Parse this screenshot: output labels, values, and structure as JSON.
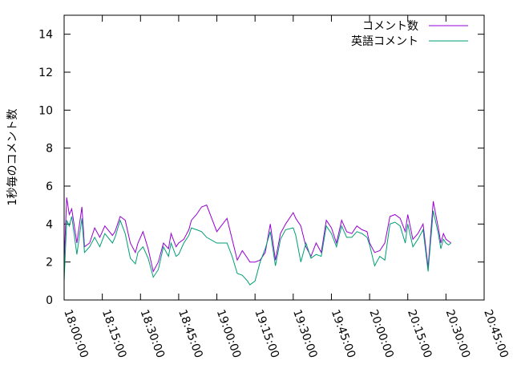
{
  "chart_data": {
    "type": "line",
    "ylabel": "1秒毎のコメント数",
    "xlabel": "",
    "title": "",
    "ylim": [
      0,
      15
    ],
    "yticks": [
      0,
      2,
      4,
      6,
      8,
      10,
      12,
      14
    ],
    "xlim": [
      "18:00:00",
      "20:45:00"
    ],
    "xticks": [
      "18:00:00",
      "18:15:00",
      "18:30:00",
      "18:45:00",
      "19:00:00",
      "19:15:00",
      "19:30:00",
      "19:45:00",
      "20:00:00",
      "20:15:00",
      "20:30:00",
      "20:45:00"
    ],
    "legend_position": "top-right",
    "grid": false,
    "series": [
      {
        "name": "コメント数",
        "color": "#9400d3",
        "x": [
          "18:00:00",
          "18:01:00",
          "18:02:00",
          "18:03:00",
          "18:05:00",
          "18:07:00",
          "18:08:00",
          "18:10:00",
          "18:12:00",
          "18:14:00",
          "18:16:00",
          "18:19:00",
          "18:20:00",
          "18:22:00",
          "18:24:00",
          "18:26:00",
          "18:28:00",
          "18:29:00",
          "18:31:00",
          "18:33:00",
          "18:35:00",
          "18:37:00",
          "18:39:00",
          "18:41:00",
          "18:42:00",
          "18:44:00",
          "18:45:00",
          "18:47:00",
          "18:49:00",
          "18:50:00",
          "18:52:00",
          "18:54:00",
          "18:56:00",
          "19:00:00",
          "19:04:00",
          "19:06:00",
          "19:08:00",
          "19:10:00",
          "19:12:00",
          "19:13:00",
          "19:15:00",
          "19:17:00",
          "19:19:00",
          "19:21:00",
          "19:23:00",
          "19:25:00",
          "19:27:00",
          "19:30:00",
          "19:31:00",
          "19:33:00",
          "19:35:00",
          "19:37:00",
          "19:39:00",
          "19:41:00",
          "19:43:00",
          "19:45:00",
          "19:47:00",
          "19:49:00",
          "19:51:00",
          "19:53:00",
          "19:55:00",
          "19:57:00",
          "19:59:00",
          "20:00:00",
          "20:02:00",
          "20:04:00",
          "20:06:00",
          "20:08:00",
          "20:10:00",
          "20:12:00",
          "20:14:00",
          "20:15:00",
          "20:17:00",
          "20:19:00",
          "20:21:00",
          "20:23:00",
          "20:25:00",
          "20:27:00",
          "20:28:00",
          "20:29:00",
          "20:30:00",
          "20:31:00",
          "20:32:00"
        ],
        "values": [
          2.0,
          5.4,
          4.5,
          4.8,
          3.0,
          4.9,
          2.8,
          3.0,
          3.8,
          3.3,
          3.9,
          3.4,
          3.6,
          4.4,
          4.2,
          3.0,
          2.5,
          3.0,
          3.6,
          2.7,
          1.5,
          2.0,
          3.0,
          2.7,
          3.5,
          2.8,
          3.0,
          3.2,
          3.7,
          4.2,
          4.5,
          4.9,
          5.0,
          3.6,
          4.3,
          3.2,
          2.1,
          2.6,
          2.2,
          2.0,
          2.0,
          2.1,
          2.5,
          4.0,
          2.1,
          3.5,
          4.0,
          4.6,
          4.3,
          3.9,
          2.8,
          2.3,
          3.0,
          2.5,
          4.2,
          3.8,
          3.0,
          4.2,
          3.6,
          3.5,
          3.9,
          3.7,
          3.6,
          3.0,
          2.5,
          2.6,
          3.0,
          4.4,
          4.5,
          4.3,
          3.6,
          4.5,
          3.2,
          3.5,
          4.0,
          1.7,
          5.2,
          3.8,
          3.0,
          3.5,
          3.2,
          3.1,
          3.0
        ]
      },
      {
        "name": "英語コメント",
        "color": "#009e73",
        "x": [
          "18:00:00",
          "18:01:00",
          "18:02:00",
          "18:03:00",
          "18:05:00",
          "18:07:00",
          "18:08:00",
          "18:10:00",
          "18:12:00",
          "18:14:00",
          "18:16:00",
          "18:19:00",
          "18:20:00",
          "18:22:00",
          "18:24:00",
          "18:26:00",
          "18:28:00",
          "18:29:00",
          "18:31:00",
          "18:33:00",
          "18:35:00",
          "18:37:00",
          "18:39:00",
          "18:41:00",
          "18:42:00",
          "18:44:00",
          "18:45:00",
          "18:47:00",
          "18:49:00",
          "18:50:00",
          "18:52:00",
          "18:54:00",
          "18:56:00",
          "19:00:00",
          "19:04:00",
          "19:06:00",
          "19:08:00",
          "19:10:00",
          "19:12:00",
          "19:13:00",
          "19:15:00",
          "19:17:00",
          "19:19:00",
          "19:21:00",
          "19:23:00",
          "19:25:00",
          "19:27:00",
          "19:30:00",
          "19:31:00",
          "19:33:00",
          "19:35:00",
          "19:37:00",
          "19:39:00",
          "19:41:00",
          "19:43:00",
          "19:45:00",
          "19:47:00",
          "19:49:00",
          "19:51:00",
          "19:53:00",
          "19:55:00",
          "19:57:00",
          "19:59:00",
          "20:00:00",
          "20:02:00",
          "20:04:00",
          "20:06:00",
          "20:08:00",
          "20:10:00",
          "20:12:00",
          "20:14:00",
          "20:15:00",
          "20:17:00",
          "20:19:00",
          "20:21:00",
          "20:23:00",
          "20:25:00",
          "20:27:00",
          "20:28:00",
          "20:29:00",
          "20:30:00",
          "20:31:00",
          "20:32:00"
        ],
        "values": [
          1.0,
          4.2,
          3.9,
          4.4,
          2.4,
          4.3,
          2.5,
          2.8,
          3.3,
          2.8,
          3.5,
          3.0,
          3.3,
          4.2,
          3.5,
          2.2,
          1.9,
          2.5,
          2.8,
          2.2,
          1.2,
          1.6,
          2.8,
          2.3,
          3.0,
          2.3,
          2.4,
          3.0,
          3.4,
          3.8,
          3.7,
          3.6,
          3.3,
          3.0,
          3.0,
          2.3,
          1.4,
          1.3,
          1.0,
          0.8,
          1.0,
          2.0,
          2.7,
          3.6,
          1.8,
          3.2,
          3.7,
          3.8,
          3.4,
          2.0,
          3.0,
          2.2,
          2.4,
          2.3,
          3.9,
          3.5,
          2.8,
          3.9,
          3.3,
          3.3,
          3.6,
          3.5,
          3.3,
          2.9,
          1.8,
          2.3,
          2.1,
          4.0,
          4.1,
          3.9,
          3.0,
          4.0,
          2.8,
          3.2,
          3.7,
          1.5,
          4.7,
          3.5,
          2.7,
          3.2,
          3.0,
          2.9,
          3.0
        ]
      }
    ]
  }
}
